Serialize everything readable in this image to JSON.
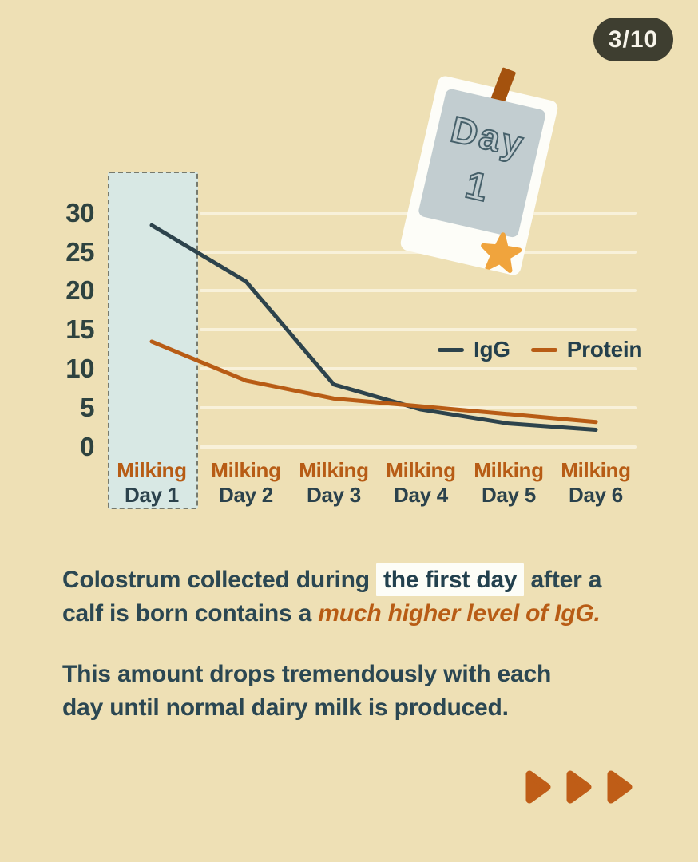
{
  "page": {
    "indicator": "3/10"
  },
  "calendar": {
    "line1": "Day",
    "line2": "1"
  },
  "chart_data": {
    "type": "line",
    "title": "",
    "categories": [
      "Day 1",
      "Day 2",
      "Day 3",
      "Day 4",
      "Day 5",
      "Day 6"
    ],
    "category_prefix": "Milking",
    "series": [
      {
        "name": "IgG",
        "color": "#2d434c",
        "values": [
          28.4,
          21.2,
          8.0,
          4.8,
          3.0,
          2.2
        ]
      },
      {
        "name": "Protein",
        "color": "#b85c15",
        "values": [
          13.5,
          8.5,
          6.2,
          5.2,
          4.2,
          3.2
        ]
      }
    ],
    "yticks": [
      0,
      5,
      10,
      15,
      20,
      25,
      30
    ],
    "ylim": [
      0,
      30
    ],
    "grid": true,
    "legend": [
      "IgG",
      "Protein"
    ],
    "legend_position": "middle-right",
    "highlighted_category": "Day 1"
  },
  "caption": {
    "p1_l1a": "Colostrum collected during ",
    "p1_l1b": "the first day",
    "p1_l1c": " after a",
    "p1_l2a": "calf is born contains a ",
    "p1_l2b": "much higher level of IgG.",
    "p2_l1": "This amount drops tremendously with each",
    "p2_l2": "day until normal dairy milk is produced."
  },
  "colors": {
    "background": "#eee0b5",
    "accent_orange": "#b85c15",
    "dark_slate": "#2b424c",
    "highlight_box_fill": "#d8e8e4",
    "gridline": "#f8f1da",
    "star": "#f0a43d",
    "badge_bg": "#3e3e30"
  }
}
